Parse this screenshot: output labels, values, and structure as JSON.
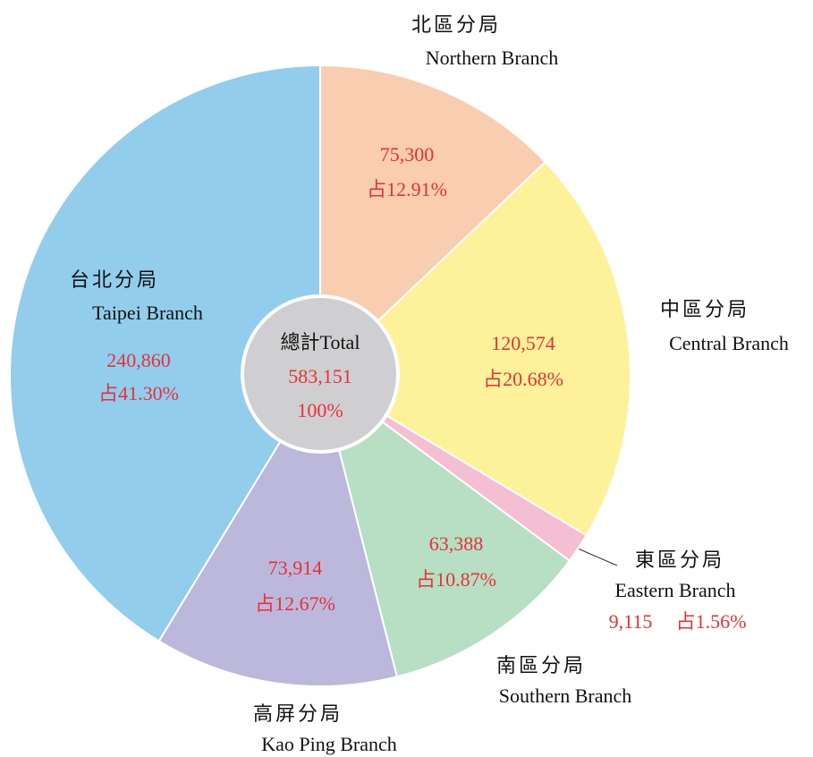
{
  "chart_data": {
    "type": "donut",
    "categories_zh": [
      "北區分局",
      "中區分局",
      "東區分局",
      "南區分局",
      "高屏分局",
      "台北分局"
    ],
    "categories": [
      "Northern Branch",
      "Central Branch",
      "Eastern Branch",
      "Southern Branch",
      "Kao Ping Branch",
      "Taipei Branch"
    ],
    "values": [
      75300,
      120574,
      9115,
      63388,
      73914,
      240860
    ],
    "value_labels": [
      "75,300",
      "120,574",
      "9,115",
      "63,388",
      "73,914",
      "240,860"
    ],
    "percent_labels": [
      "占12.91%",
      "占20.68%",
      "占1.56%",
      "占10.87%",
      "占12.67%",
      "占41.30%"
    ],
    "colors": [
      "#f9cdb0",
      "#fdf29a",
      "#f5bfd3",
      "#b6dfc3",
      "#bbb8dc",
      "#92cdec"
    ],
    "total_label": "總計Total",
    "total_value_label": "583,151",
    "total_percent_label": "100%"
  }
}
